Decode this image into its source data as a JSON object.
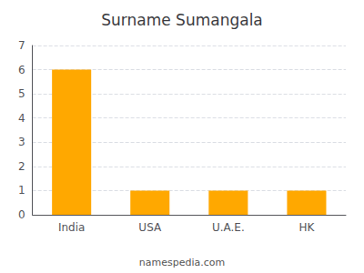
{
  "chart_data": {
    "type": "bar",
    "title": "Surname Sumangala",
    "categories": [
      "India",
      "USA",
      "U.A.E.",
      "HK"
    ],
    "values": [
      6,
      1,
      1,
      1
    ],
    "color": "#FFA800",
    "ylim": [
      0,
      7
    ],
    "yticks": [
      0,
      1,
      2,
      3,
      4,
      5,
      6,
      7
    ],
    "grid": true,
    "annotations": [
      "namespedia.com"
    ]
  }
}
